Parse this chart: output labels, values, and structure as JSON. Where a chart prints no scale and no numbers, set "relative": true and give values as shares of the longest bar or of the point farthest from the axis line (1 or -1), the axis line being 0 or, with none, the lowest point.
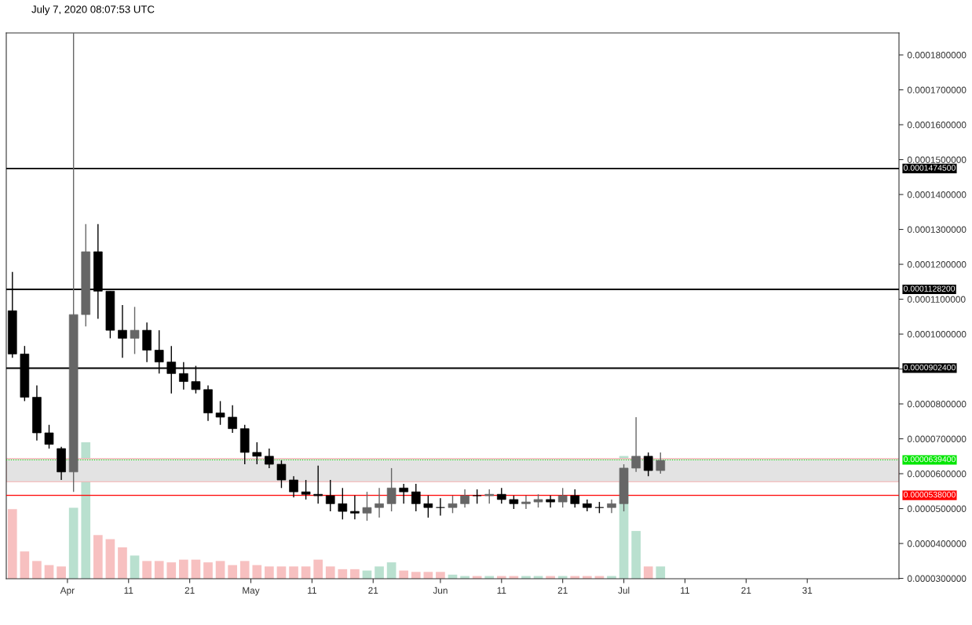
{
  "chart_data": [
    {
      "type": "candlestick",
      "title": "July 7, 2020 08:07:53 UTC",
      "x": [
        "2020-03-23",
        "2020-03-25",
        "2020-03-27",
        "2020-03-29",
        "2020-03-31",
        "2020-04-02",
        "2020-04-04",
        "2020-04-06",
        "2020-04-08",
        "2020-04-10",
        "2020-04-12",
        "2020-04-14",
        "2020-04-16",
        "2020-04-18",
        "2020-04-20",
        "2020-04-22",
        "2020-04-24",
        "2020-04-26",
        "2020-04-28",
        "2020-04-30",
        "2020-05-02",
        "2020-05-04",
        "2020-05-06",
        "2020-05-08",
        "2020-05-10",
        "2020-05-12",
        "2020-05-14",
        "2020-05-16",
        "2020-05-18",
        "2020-05-20",
        "2020-05-22",
        "2020-05-24",
        "2020-05-26",
        "2020-05-28",
        "2020-05-30",
        "2020-06-01",
        "2020-06-03",
        "2020-06-05",
        "2020-06-07",
        "2020-06-09",
        "2020-06-11",
        "2020-06-13",
        "2020-06-15",
        "2020-06-17",
        "2020-06-19",
        "2020-06-21",
        "2020-06-23",
        "2020-06-25",
        "2020-06-27",
        "2020-06-29",
        "2020-07-01",
        "2020-07-03",
        "2020-07-05",
        "2020-07-07"
      ],
      "ohlc": [
        [
          0.0001067,
          0.0001178,
          9.32e-05,
          9.43e-05
        ],
        [
          9.43e-05,
          9.66e-05,
          8.08e-05,
          8.19e-05
        ],
        [
          8.19e-05,
          8.53e-05,
          6.95e-05,
          7.17e-05
        ],
        [
          7.17e-05,
          7.4e-05,
          6.72e-05,
          6.84e-05
        ],
        [
          6.72e-05,
          6.77e-05,
          5.82e-05,
          6.05e-05
        ],
        [
          6.05e-05,
          0.0001863,
          5.48e-05,
          0.0001056
        ],
        [
          0.0001056,
          0.0001315,
          0.0001022,
          0.0001236
        ],
        [
          0.0001236,
          0.0001315,
          0.0001044,
          0.0001123
        ],
        [
          0.0001123,
          0.0001123,
          9.88e-05,
          0.0001011
        ],
        [
          0.0001011,
          0.0001083,
          9.32e-05,
          9.88e-05
        ],
        [
          9.88e-05,
          0.0001078,
          9.43e-05,
          0.0001011
        ],
        [
          0.0001011,
          0.0001033,
          9.2e-05,
          9.54e-05
        ],
        [
          9.54e-05,
          0.0001011,
          8.87e-05,
          9.2e-05
        ],
        [
          9.2e-05,
          9.66e-05,
          8.3e-05,
          8.87e-05
        ],
        [
          8.87e-05,
          9.2e-05,
          8.41e-05,
          8.64e-05
        ],
        [
          8.64e-05,
          9.09e-05,
          8.3e-05,
          8.41e-05
        ],
        [
          8.41e-05,
          8.53e-05,
          7.51e-05,
          7.74e-05
        ],
        [
          7.74e-05,
          8.08e-05,
          7.4e-05,
          7.62e-05
        ],
        [
          7.62e-05,
          7.96e-05,
          7.17e-05,
          7.29e-05
        ],
        [
          7.29e-05,
          7.4e-05,
          6.27e-05,
          6.61e-05
        ],
        [
          6.61e-05,
          6.9e-05,
          6.27e-05,
          6.5e-05
        ],
        [
          6.5e-05,
          6.72e-05,
          6.16e-05,
          6.27e-05
        ],
        [
          6.27e-05,
          6.38e-05,
          5.59e-05,
          5.82e-05
        ],
        [
          5.82e-05,
          5.93e-05,
          5.32e-05,
          5.48e-05
        ],
        [
          5.48e-05,
          5.82e-05,
          5.26e-05,
          5.41e-05
        ],
        [
          5.41e-05,
          6.23e-05,
          5.14e-05,
          5.37e-05
        ],
        [
          5.37e-05,
          5.82e-05,
          4.92e-05,
          5.14e-05
        ],
        [
          5.14e-05,
          5.59e-05,
          4.69e-05,
          4.92e-05
        ],
        [
          4.92e-05,
          5.37e-05,
          4.69e-05,
          4.87e-05
        ],
        [
          4.87e-05,
          5.48e-05,
          4.65e-05,
          5.03e-05
        ],
        [
          5.03e-05,
          5.59e-05,
          4.74e-05,
          5.14e-05
        ],
        [
          5.14e-05,
          6.16e-05,
          4.92e-05,
          5.59e-05
        ],
        [
          5.59e-05,
          5.71e-05,
          5.14e-05,
          5.48e-05
        ],
        [
          5.48e-05,
          5.71e-05,
          4.92e-05,
          5.14e-05
        ],
        [
          5.14e-05,
          5.37e-05,
          4.74e-05,
          5.03e-05
        ],
        [
          5.03e-05,
          5.3e-05,
          4.8e-05,
          5.03e-05
        ],
        [
          5.03e-05,
          5.37e-05,
          4.87e-05,
          5.14e-05
        ],
        [
          5.14e-05,
          5.55e-05,
          5.03e-05,
          5.37e-05
        ],
        [
          5.37e-05,
          5.55e-05,
          5.14e-05,
          5.37e-05
        ],
        [
          5.37e-05,
          5.55e-05,
          5.14e-05,
          5.41e-05
        ],
        [
          5.41e-05,
          5.59e-05,
          5.14e-05,
          5.26e-05
        ],
        [
          5.26e-05,
          5.37e-05,
          4.99e-05,
          5.14e-05
        ],
        [
          5.14e-05,
          5.37e-05,
          4.99e-05,
          5.19e-05
        ],
        [
          5.19e-05,
          5.41e-05,
          5.03e-05,
          5.26e-05
        ],
        [
          5.26e-05,
          5.37e-05,
          5.03e-05,
          5.19e-05
        ],
        [
          5.19e-05,
          5.59e-05,
          5.03e-05,
          5.37e-05
        ],
        [
          5.37e-05,
          5.55e-05,
          5.03e-05,
          5.14e-05
        ],
        [
          5.14e-05,
          5.26e-05,
          4.92e-05,
          5.03e-05
        ],
        [
          5.03e-05,
          5.19e-05,
          4.87e-05,
          5.03e-05
        ],
        [
          5.03e-05,
          5.26e-05,
          4.87e-05,
          5.14e-05
        ],
        [
          5.14e-05,
          6.27e-05,
          4.92e-05,
          6.16e-05
        ],
        [
          6.16e-05,
          7.62e-05,
          6.05e-05,
          6.5e-05
        ],
        [
          6.5e-05,
          6.61e-05,
          5.93e-05,
          6.09e-05
        ],
        [
          6.09e-05,
          6.61e-05,
          6e-05,
          6.38e-05
        ]
      ],
      "colors": [
        "#000000",
        "#000000",
        "#000000",
        "#000000",
        "#000000",
        "#666666",
        "#666666",
        "#000000",
        "#000000",
        "#000000",
        "#666666",
        "#000000",
        "#000000",
        "#000000",
        "#000000",
        "#000000",
        "#000000",
        "#000000",
        "#000000",
        "#000000",
        "#000000",
        "#000000",
        "#000000",
        "#000000",
        "#000000",
        "#000000",
        "#000000",
        "#000000",
        "#000000",
        "#666666",
        "#666666",
        "#666666",
        "#000000",
        "#000000",
        "#000000",
        "#000000",
        "#666666",
        "#666666",
        "#000000",
        "#666666",
        "#000000",
        "#000000",
        "#666666",
        "#666666",
        "#000000",
        "#666666",
        "#000000",
        "#000000",
        "#000000",
        "#666666",
        "#666666",
        "#666666",
        "#000000",
        "#666666"
      ],
      "xlim": [
        "2020-03-22",
        "2020-08-15"
      ],
      "xticks": [
        {
          "value": "2020-04-01",
          "label": "Apr"
        },
        {
          "value": "2020-04-11",
          "label": "11"
        },
        {
          "value": "2020-04-21",
          "label": "21"
        },
        {
          "value": "2020-05-01",
          "label": "May"
        },
        {
          "value": "2020-05-11",
          "label": "11"
        },
        {
          "value": "2020-05-21",
          "label": "21"
        },
        {
          "value": "2020-06-01",
          "label": "Jun"
        },
        {
          "value": "2020-06-11",
          "label": "11"
        },
        {
          "value": "2020-06-21",
          "label": "21"
        },
        {
          "value": "2020-07-01",
          "label": "Jul"
        },
        {
          "value": "2020-07-11",
          "label": "11"
        },
        {
          "value": "2020-07-21",
          "label": "21"
        },
        {
          "value": "2020-07-31",
          "label": "31"
        }
      ],
      "ylim": [
        2.99e-05,
        0.0001863
      ],
      "yticks": [
        {
          "value": 3e-05,
          "label": "0.0000300000"
        },
        {
          "value": 4e-05,
          "label": "0.0000400000"
        },
        {
          "value": 5e-05,
          "label": "0.0000500000"
        },
        {
          "value": 6e-05,
          "label": "0.0000600000"
        },
        {
          "value": 7e-05,
          "label": "0.0000700000"
        },
        {
          "value": 8e-05,
          "label": "0.0000800000"
        },
        {
          "value": 9e-05,
          "label": null
        },
        {
          "value": 0.0001,
          "label": "0.0001000000"
        },
        {
          "value": 0.00011,
          "label": "0.0001100000"
        },
        {
          "value": 0.00012,
          "label": "0.0001200000"
        },
        {
          "value": 0.00013,
          "label": "0.0001300000"
        },
        {
          "value": 0.00014,
          "label": "0.0001400000"
        },
        {
          "value": 0.00015,
          "label": "0.0001500000"
        },
        {
          "value": 0.00016,
          "label": "0.0001600000"
        },
        {
          "value": 0.00017,
          "label": "0.0001700000"
        },
        {
          "value": 0.00018,
          "label": "0.0001800000"
        }
      ],
      "ref_lines": [
        {
          "axis": "y",
          "value": 0.00014745,
          "label": "0.0001474500",
          "color": "#000000"
        },
        {
          "axis": "y",
          "value": 0.00011282,
          "label": "0.0001128200",
          "color": "#000000"
        },
        {
          "axis": "y",
          "value": 9.024e-05,
          "label": "0.0000902400",
          "color": "#000000"
        },
        {
          "axis": "y",
          "value": 6.394e-05,
          "label": "0.0000639400",
          "color": "#00e600",
          "line_style": "dotted"
        },
        {
          "axis": "y",
          "value": 5.38e-05,
          "label": "0.0000538000",
          "color": "#ff0000"
        }
      ],
      "bands": [
        {
          "axis": "y",
          "from": 5.77e-05,
          "to": 6.43e-05,
          "color": "#e3e3e3"
        }
      ],
      "grid": false,
      "legend": false
    },
    {
      "type": "bar",
      "relative": true,
      "x": [
        "2020-03-23",
        "2020-03-25",
        "2020-03-27",
        "2020-03-29",
        "2020-03-31",
        "2020-04-02",
        "2020-04-04",
        "2020-04-06",
        "2020-04-08",
        "2020-04-10",
        "2020-04-12",
        "2020-04-14",
        "2020-04-16",
        "2020-04-18",
        "2020-04-20",
        "2020-04-22",
        "2020-04-24",
        "2020-04-26",
        "2020-04-28",
        "2020-04-30",
        "2020-05-02",
        "2020-05-04",
        "2020-05-06",
        "2020-05-08",
        "2020-05-10",
        "2020-05-12",
        "2020-05-14",
        "2020-05-16",
        "2020-05-18",
        "2020-05-20",
        "2020-05-22",
        "2020-05-24",
        "2020-05-26",
        "2020-05-28",
        "2020-05-30",
        "2020-06-01",
        "2020-06-03",
        "2020-06-05",
        "2020-06-07",
        "2020-06-09",
        "2020-06-11",
        "2020-06-13",
        "2020-06-15",
        "2020-06-17",
        "2020-06-19",
        "2020-06-21",
        "2020-06-23",
        "2020-06-25",
        "2020-06-27",
        "2020-06-29",
        "2020-07-01",
        "2020-07-03",
        "2020-07-05",
        "2020-07-07"
      ],
      "xlim": [
        "2020-03-22",
        "2020-08-15"
      ],
      "values": [
        0.51,
        0.2,
        0.13,
        0.1,
        0.09,
        0.52,
        1,
        0.32,
        0.29,
        0.23,
        0.17,
        0.13,
        0.13,
        0.12,
        0.14,
        0.14,
        0.12,
        0.13,
        0.1,
        0.13,
        0.1,
        0.09,
        0.09,
        0.09,
        0.09,
        0.14,
        0.09,
        0.07,
        0.07,
        0.06,
        0.09,
        0.12,
        0.06,
        0.05,
        0.05,
        0.05,
        0.03,
        0.02,
        0.02,
        0.02,
        0.02,
        0.02,
        0.02,
        0.02,
        0.02,
        0.02,
        0.02,
        0.02,
        0.02,
        0.02,
        0.9,
        0.35,
        0.09,
        0.09
      ],
      "colors": [
        "#f7c0c0",
        "#f7c0c0",
        "#f7c0c0",
        "#f7c0c0",
        "#f7c0c0",
        "#b9e0cf",
        "#b9e0cf",
        "#f7c0c0",
        "#f7c0c0",
        "#f7c0c0",
        "#b9e0cf",
        "#f7c0c0",
        "#f7c0c0",
        "#f7c0c0",
        "#f7c0c0",
        "#f7c0c0",
        "#f7c0c0",
        "#f7c0c0",
        "#f7c0c0",
        "#f7c0c0",
        "#f7c0c0",
        "#f7c0c0",
        "#f7c0c0",
        "#f7c0c0",
        "#f7c0c0",
        "#f7c0c0",
        "#f7c0c0",
        "#f7c0c0",
        "#f7c0c0",
        "#b9e0cf",
        "#b9e0cf",
        "#b9e0cf",
        "#f7c0c0",
        "#f7c0c0",
        "#f7c0c0",
        "#f7c0c0",
        "#b9e0cf",
        "#b9e0cf",
        "#f7c0c0",
        "#b9e0cf",
        "#f7c0c0",
        "#f7c0c0",
        "#b9e0cf",
        "#b9e0cf",
        "#f7c0c0",
        "#b9e0cf",
        "#f7c0c0",
        "#f7c0c0",
        "#f7c0c0",
        "#b9e0cf",
        "#b9e0cf",
        "#b9e0cf",
        "#f7c0c0",
        "#b9e0cf"
      ]
    }
  ]
}
